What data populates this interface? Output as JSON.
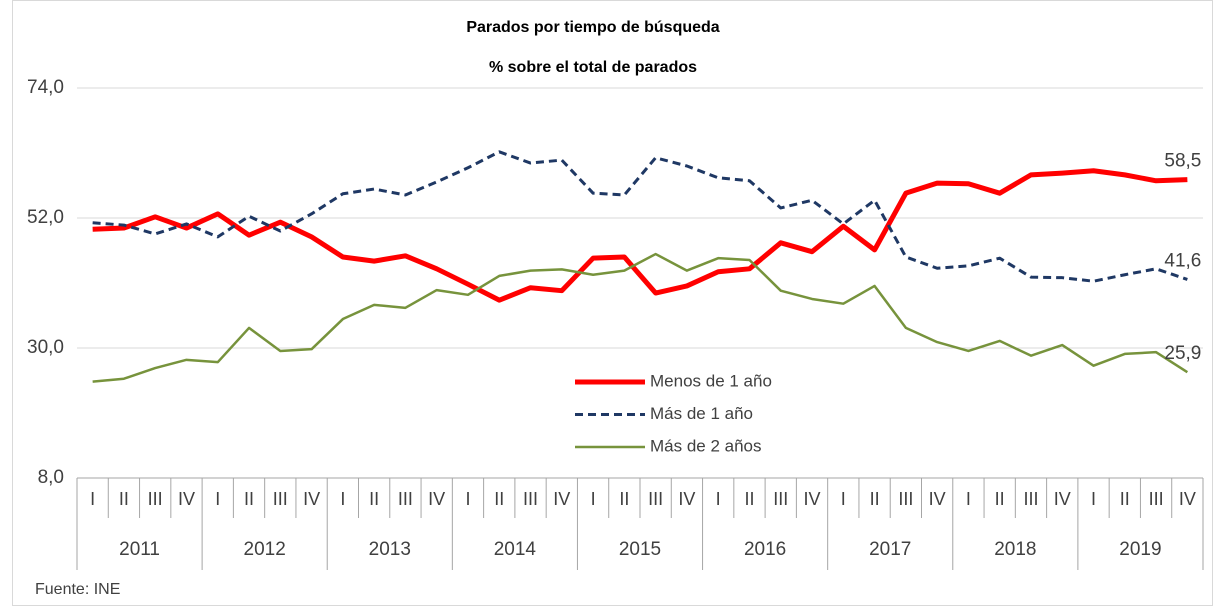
{
  "chart_data": {
    "type": "line",
    "title": "Parados por tiempo de búsqueda",
    "subtitle": "% sobre el total de parados",
    "categories": [
      "I",
      "II",
      "III",
      "IV",
      "I",
      "II",
      "III",
      "IV",
      "I",
      "II",
      "III",
      "IV",
      "I",
      "II",
      "III",
      "IV",
      "I",
      "II",
      "III",
      "IV",
      "I",
      "II",
      "III",
      "IV",
      "I",
      "II",
      "III",
      "IV",
      "I",
      "II",
      "III",
      "IV",
      "I",
      "II",
      "III",
      "IV"
    ],
    "groups": [
      "2011",
      "2012",
      "2013",
      "2014",
      "2015",
      "2016",
      "2017",
      "2018",
      "2019"
    ],
    "ylim": [
      8,
      74
    ],
    "yticks": [
      {
        "value": 8,
        "label": "8,0"
      },
      {
        "value": 30,
        "label": "30,0"
      },
      {
        "value": 52,
        "label": "52,0"
      },
      {
        "value": 74,
        "label": "74,0"
      }
    ],
    "grid": true,
    "legend_position": "lower center",
    "series": [
      {
        "name": "Menos de 1 año",
        "color": "#ff0000",
        "dash": "solid",
        "values": [
          50.1,
          50.3,
          52.2,
          50.3,
          52.7,
          49.1,
          51.3,
          48.8,
          45.4,
          44.7,
          45.6,
          43.4,
          40.8,
          38.1,
          40.2,
          39.7,
          45.2,
          45.4,
          39.3,
          40.5,
          42.9,
          43.4,
          47.8,
          46.3,
          50.6,
          46.6,
          56.2,
          57.9,
          57.8,
          56.2,
          59.3,
          59.6,
          60.0,
          59.3,
          58.3,
          58.5
        ],
        "value_labels": [
          null,
          null,
          null,
          null,
          null,
          null,
          null,
          null,
          null,
          null,
          null,
          null,
          null,
          null,
          null,
          null,
          null,
          null,
          null,
          null,
          null,
          null,
          null,
          null,
          null,
          null,
          null,
          null,
          null,
          null,
          null,
          null,
          null,
          null,
          null,
          "58,5"
        ]
      },
      {
        "name": "Más de 1 año",
        "color": "#1f3864",
        "dash": "dashed",
        "values": [
          51.2,
          50.8,
          49.3,
          51.0,
          48.8,
          52.3,
          49.8,
          52.7,
          56.1,
          56.9,
          55.9,
          58.1,
          60.5,
          63.2,
          61.3,
          61.8,
          56.2,
          55.9,
          62.2,
          60.8,
          58.8,
          58.3,
          53.7,
          55.0,
          51.0,
          55.0,
          45.4,
          43.5,
          43.9,
          45.2,
          42.0,
          41.9,
          41.3,
          42.4,
          43.4,
          41.6
        ],
        "value_labels": [
          null,
          null,
          null,
          null,
          null,
          null,
          null,
          null,
          null,
          null,
          null,
          null,
          null,
          null,
          null,
          null,
          null,
          null,
          null,
          null,
          null,
          null,
          null,
          null,
          null,
          null,
          null,
          null,
          null,
          null,
          null,
          null,
          null,
          null,
          null,
          "41,6"
        ]
      },
      {
        "name": "Más de 2 años",
        "color": "#77933c",
        "dash": "solid",
        "values": [
          24.3,
          24.8,
          26.6,
          28.0,
          27.6,
          33.4,
          29.5,
          29.8,
          34.9,
          37.3,
          36.8,
          39.8,
          39.0,
          42.2,
          43.1,
          43.3,
          42.4,
          43.1,
          45.9,
          43.1,
          45.2,
          44.9,
          39.7,
          38.3,
          37.5,
          40.5,
          33.4,
          31.0,
          29.5,
          31.2,
          28.7,
          30.5,
          27.0,
          29.0,
          29.3,
          25.9
        ],
        "value_labels": [
          null,
          null,
          null,
          null,
          null,
          null,
          null,
          null,
          null,
          null,
          null,
          null,
          null,
          null,
          null,
          null,
          null,
          null,
          null,
          null,
          null,
          null,
          null,
          null,
          null,
          null,
          null,
          null,
          null,
          null,
          null,
          null,
          null,
          null,
          null,
          "25,9"
        ]
      }
    ],
    "source": "Fuente: INE"
  }
}
